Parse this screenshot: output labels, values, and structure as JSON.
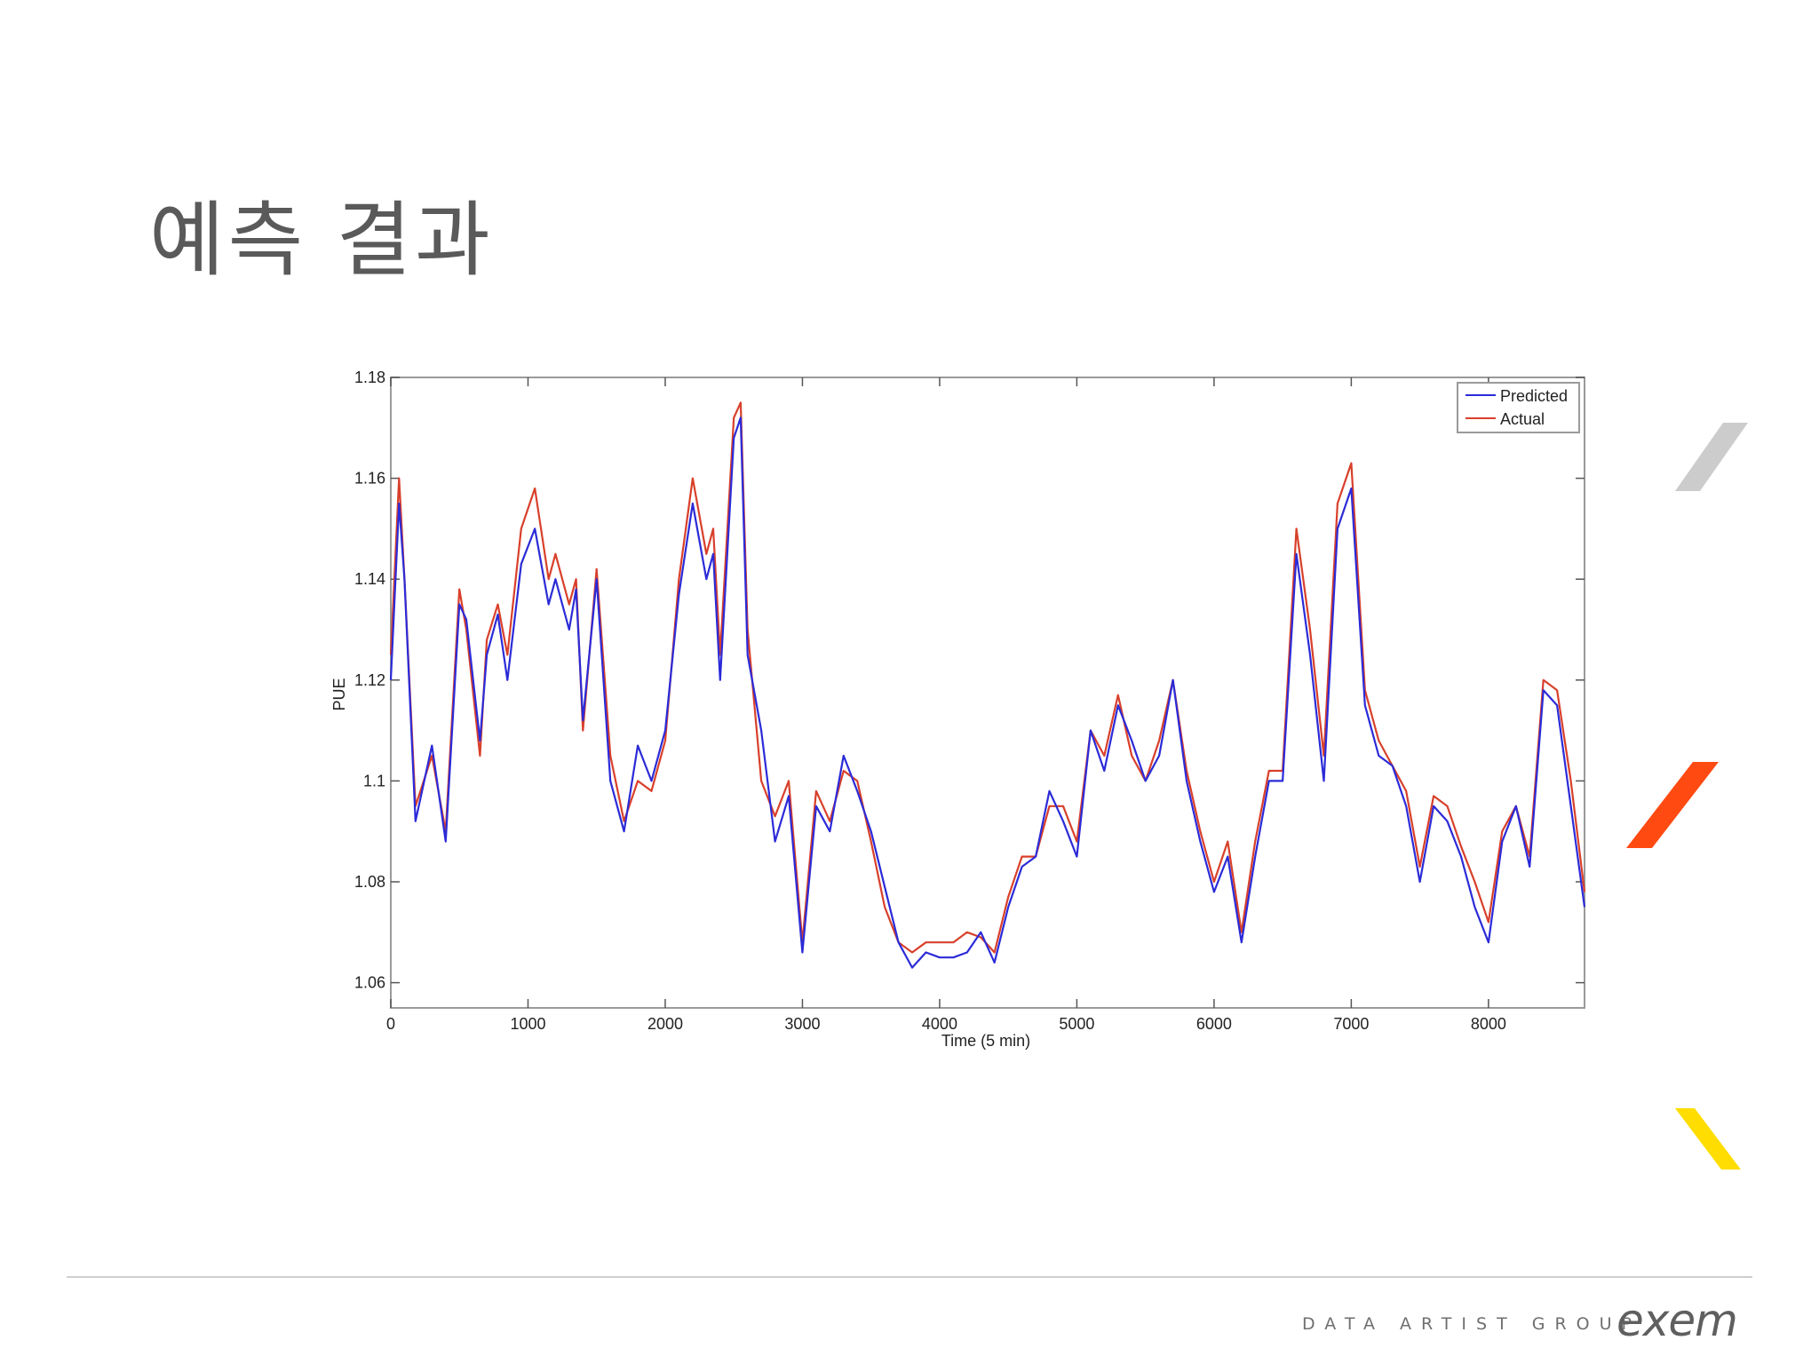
{
  "slide": {
    "title": "예측 결과",
    "footer_text": "DATA ARTIST GROUP",
    "logo_text": "exem"
  },
  "colors": {
    "predicted": "#2b2bd8",
    "actual": "#d8402b",
    "accent_gray": "#cccccc",
    "accent_orange": "#ff4a12",
    "accent_yellow": "#ffdd00"
  },
  "chart_data": {
    "type": "line",
    "xlabel": "Time (5 min)",
    "ylabel": "PUE",
    "xlim": [
      0,
      8700
    ],
    "ylim": [
      1.055,
      1.18
    ],
    "xticks": [
      0,
      1000,
      2000,
      3000,
      4000,
      5000,
      6000,
      7000,
      8000
    ],
    "xtick_labels": [
      "0",
      "1000",
      "2000",
      "3000",
      "4000",
      "5000",
      "6000",
      "7000",
      "8000"
    ],
    "yticks": [
      1.06,
      1.08,
      1.1,
      1.12,
      1.14,
      1.16,
      1.18
    ],
    "ytick_labels": [
      "1.06",
      "1.08",
      "1.1",
      "1.12",
      "1.14",
      "1.16",
      "1.18"
    ],
    "grid": false,
    "legend_position": "top-right",
    "x": [
      0,
      60,
      100,
      180,
      300,
      400,
      500,
      550,
      650,
      700,
      780,
      850,
      950,
      1050,
      1150,
      1200,
      1300,
      1350,
      1400,
      1500,
      1600,
      1700,
      1800,
      1900,
      2000,
      2100,
      2200,
      2300,
      2350,
      2400,
      2500,
      2550,
      2600,
      2700,
      2800,
      2900,
      3000,
      3100,
      3200,
      3300,
      3400,
      3500,
      3600,
      3700,
      3800,
      3900,
      4000,
      4100,
      4200,
      4300,
      4400,
      4500,
      4600,
      4700,
      4800,
      4900,
      5000,
      5100,
      5200,
      5300,
      5400,
      5500,
      5600,
      5700,
      5800,
      5900,
      6000,
      6100,
      6200,
      6300,
      6400,
      6500,
      6600,
      6700,
      6800,
      6900,
      7000,
      7100,
      7200,
      7300,
      7400,
      7500,
      7600,
      7700,
      7800,
      7900,
      8000,
      8100,
      8200,
      8300,
      8400,
      8500,
      8600,
      8700
    ],
    "series": [
      {
        "name": "Predicted",
        "values": [
          1.12,
          1.155,
          1.14,
          1.092,
          1.107,
          1.088,
          1.135,
          1.132,
          1.108,
          1.125,
          1.133,
          1.12,
          1.143,
          1.15,
          1.135,
          1.14,
          1.13,
          1.138,
          1.112,
          1.14,
          1.1,
          1.09,
          1.107,
          1.1,
          1.11,
          1.137,
          1.155,
          1.14,
          1.145,
          1.12,
          1.168,
          1.172,
          1.125,
          1.11,
          1.088,
          1.097,
          1.066,
          1.095,
          1.09,
          1.105,
          1.098,
          1.09,
          1.079,
          1.068,
          1.063,
          1.066,
          1.065,
          1.065,
          1.066,
          1.07,
          1.064,
          1.075,
          1.083,
          1.085,
          1.098,
          1.092,
          1.085,
          1.11,
          1.102,
          1.115,
          1.108,
          1.1,
          1.105,
          1.12,
          1.1,
          1.088,
          1.078,
          1.085,
          1.068,
          1.085,
          1.1,
          1.1,
          1.145,
          1.125,
          1.1,
          1.15,
          1.158,
          1.115,
          1.105,
          1.103,
          1.095,
          1.08,
          1.095,
          1.092,
          1.085,
          1.075,
          1.068,
          1.088,
          1.095,
          1.083,
          1.118,
          1.115,
          1.095,
          1.075
        ]
      },
      {
        "name": "Actual",
        "values": [
          1.125,
          1.16,
          1.14,
          1.095,
          1.105,
          1.09,
          1.138,
          1.13,
          1.105,
          1.128,
          1.135,
          1.125,
          1.15,
          1.158,
          1.14,
          1.145,
          1.135,
          1.14,
          1.11,
          1.142,
          1.105,
          1.092,
          1.1,
          1.098,
          1.108,
          1.14,
          1.16,
          1.145,
          1.15,
          1.125,
          1.172,
          1.175,
          1.13,
          1.1,
          1.093,
          1.1,
          1.068,
          1.098,
          1.092,
          1.102,
          1.1,
          1.088,
          1.075,
          1.068,
          1.066,
          1.068,
          1.068,
          1.068,
          1.07,
          1.069,
          1.066,
          1.077,
          1.085,
          1.085,
          1.095,
          1.095,
          1.088,
          1.11,
          1.105,
          1.117,
          1.105,
          1.1,
          1.108,
          1.12,
          1.102,
          1.09,
          1.08,
          1.088,
          1.07,
          1.088,
          1.102,
          1.102,
          1.15,
          1.13,
          1.105,
          1.155,
          1.163,
          1.118,
          1.108,
          1.103,
          1.098,
          1.083,
          1.097,
          1.095,
          1.087,
          1.08,
          1.072,
          1.09,
          1.095,
          1.085,
          1.12,
          1.118,
          1.1,
          1.078
        ]
      }
    ]
  }
}
